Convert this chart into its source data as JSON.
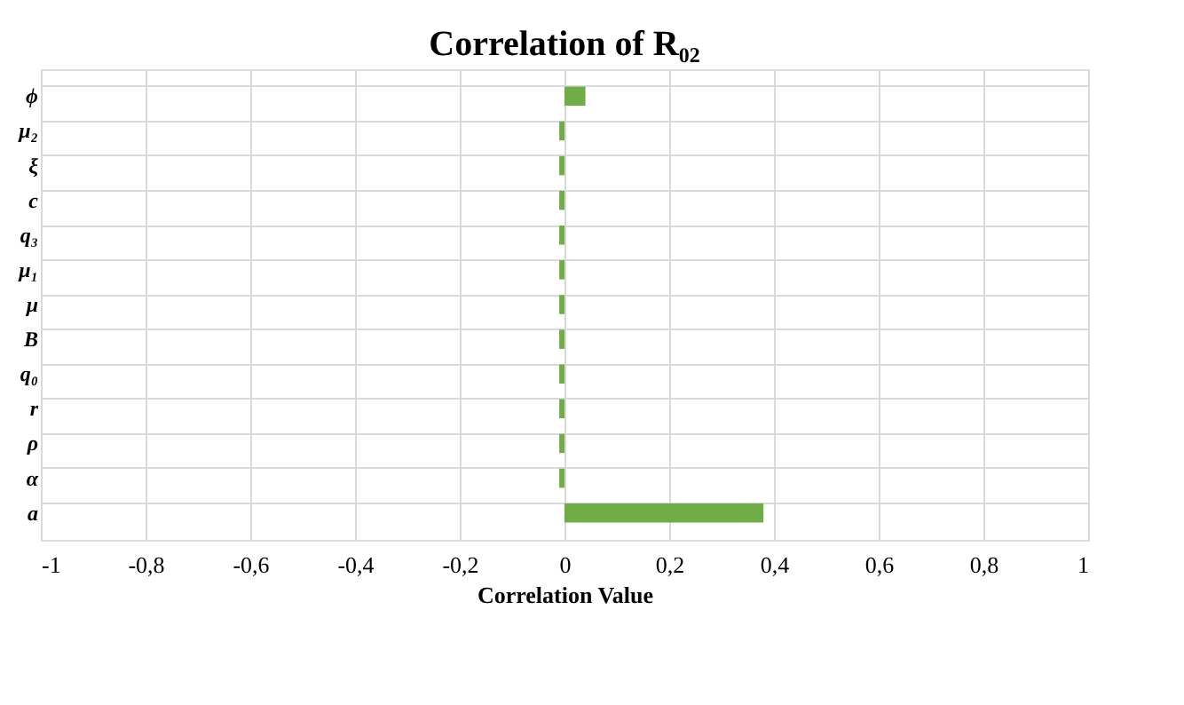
{
  "chart_data": {
    "type": "bar",
    "orientation": "horizontal",
    "title": "Correlation of R₀₂",
    "xlabel": "Correlation Value",
    "categories": [
      "ϕ",
      "μ₂",
      "ξ",
      "c",
      "q₃",
      "μ₁",
      "μ",
      "B",
      "q₀",
      "r",
      "ρ",
      "α",
      "a"
    ],
    "values": [
      0.04,
      -0.01,
      -0.01,
      -0.01,
      -0.01,
      -0.01,
      -0.01,
      -0.01,
      -0.01,
      -0.01,
      -0.01,
      -0.01,
      0.38
    ],
    "color": "#70ad47",
    "xlim": [
      -1,
      1
    ],
    "xticks": [
      -1,
      {
        "value": -0.8,
        "label": "-0,8"
      },
      {
        "value": -0.6,
        "label": "-0,6"
      },
      {
        "value": -0.4,
        "label": "-0,4"
      },
      {
        "value": -0.2,
        "label": "-0,2"
      },
      0,
      {
        "value": 0.2,
        "label": "0,2"
      },
      {
        "value": 0.4,
        "label": "0,4"
      },
      {
        "value": 0.6,
        "label": "0,6"
      },
      {
        "value": 0.8,
        "label": "0,8"
      },
      1
    ],
    "grid": true
  }
}
